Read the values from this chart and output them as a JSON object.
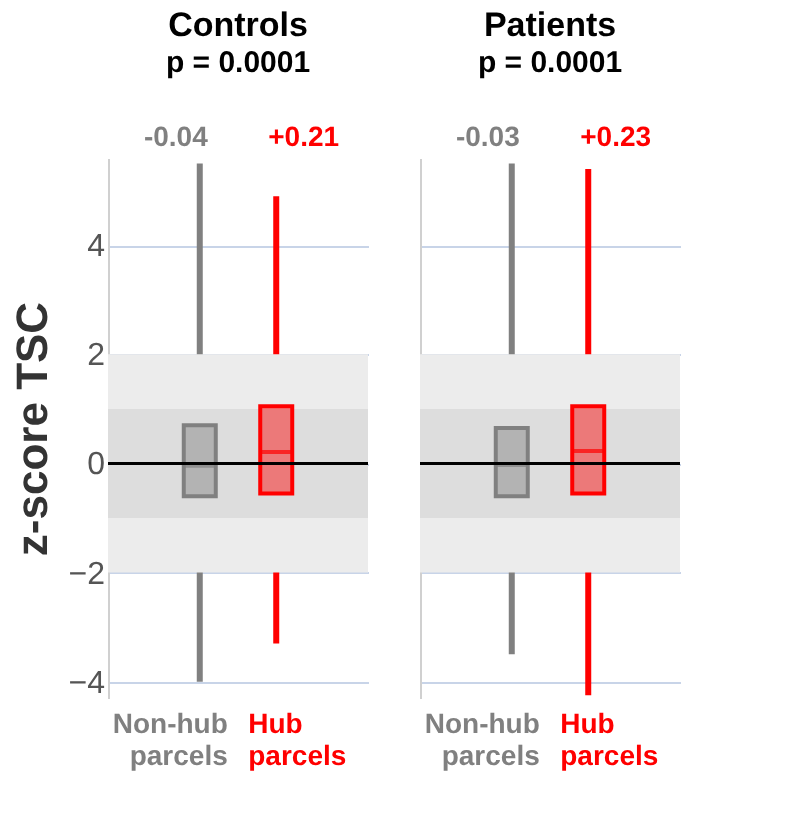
{
  "chart_data": [
    {
      "type": "box",
      "title": "Controls",
      "subtitle": "p = 0.0001",
      "ylabel": "z-score TSC",
      "categories": [
        "Non-hub parcels",
        "Hub parcels"
      ],
      "colors": [
        "#808080",
        "#ff0000"
      ],
      "boxes": [
        {
          "low": -4.0,
          "q1": -0.6,
          "median": -0.04,
          "q3": 0.7,
          "high": 5.5
        },
        {
          "low": -3.3,
          "q1": -0.55,
          "median": 0.21,
          "q3": 1.05,
          "high": 4.9
        }
      ],
      "annotations": [
        "-0.04",
        "+0.21"
      ],
      "ylim": [
        -4.3,
        5.6
      ],
      "yticks": [
        -4,
        -2,
        0,
        2,
        4
      ],
      "grid": "y",
      "bands": [
        {
          "axis": "y",
          "from": -2,
          "to": 2,
          "color": "#ececec"
        },
        {
          "axis": "y",
          "from": -1,
          "to": 1,
          "color": "#dddddd"
        }
      ],
      "ref_lines": [
        {
          "axis": "y",
          "value": 0,
          "color": "#000000"
        }
      ]
    },
    {
      "type": "box",
      "title": "Patients",
      "subtitle": "p = 0.0001",
      "categories": [
        "Non-hub parcels",
        "Hub parcels"
      ],
      "colors": [
        "#808080",
        "#ff0000"
      ],
      "boxes": [
        {
          "low": -3.5,
          "q1": -0.6,
          "median": -0.03,
          "q3": 0.65,
          "high": 5.5
        },
        {
          "low": -4.25,
          "q1": -0.55,
          "median": 0.23,
          "q3": 1.05,
          "high": 5.4
        }
      ],
      "annotations": [
        "-0.03",
        "+0.23"
      ],
      "ylim": [
        -4.3,
        5.6
      ],
      "yticks": [
        -4,
        -2,
        0,
        2,
        4
      ],
      "grid": "y",
      "tick_labels": "x",
      "bands": [
        {
          "axis": "y",
          "from": -2,
          "to": 2,
          "color": "#ececec"
        },
        {
          "axis": "y",
          "from": -1,
          "to": 1,
          "color": "#dddddd"
        }
      ],
      "ref_lines": [
        {
          "axis": "y",
          "value": 0,
          "color": "#000000"
        }
      ]
    }
  ]
}
